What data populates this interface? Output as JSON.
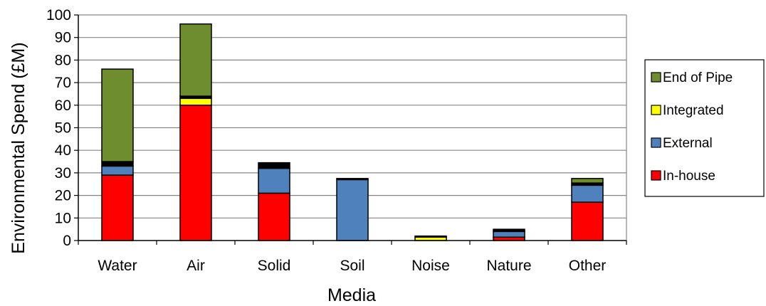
{
  "chart_data": {
    "type": "bar",
    "stacked": true,
    "title": "",
    "xlabel": "Media",
    "ylabel": "Environmental Spend (£M)",
    "ylim": [
      0,
      100
    ],
    "yticks": [
      "0",
      "10",
      "20",
      "30",
      "40",
      "50",
      "60",
      "70",
      "80",
      "90",
      "100"
    ],
    "ytick_step": 10,
    "grid": true,
    "legend_position": "right",
    "categories": [
      "Water",
      "Air",
      "Solid",
      "Soil",
      "Noise",
      "Nature",
      "Other"
    ],
    "series": [
      {
        "name": "In-house",
        "color": "#ff0000",
        "values": [
          29,
          60,
          21,
          0,
          0,
          1.5,
          17
        ]
      },
      {
        "name": "External",
        "color": "#4f81bd",
        "values": [
          4,
          0,
          11,
          27,
          0,
          2.5,
          7.5
        ]
      },
      {
        "name": "Integrated",
        "color": "#ffff00",
        "values": [
          0,
          3,
          0,
          0,
          1.5,
          0,
          0
        ]
      },
      {
        "name": "",
        "color": "#000000",
        "values": [
          2,
          1,
          2.5,
          0.5,
          0.5,
          1,
          1
        ]
      },
      {
        "name": "End of Pipe",
        "color": "#6e8d2f",
        "values": [
          41,
          32,
          0,
          0,
          0,
          0,
          2
        ]
      }
    ],
    "legend_order": [
      "End of Pipe",
      "Integrated",
      "External",
      "In-house"
    ]
  }
}
